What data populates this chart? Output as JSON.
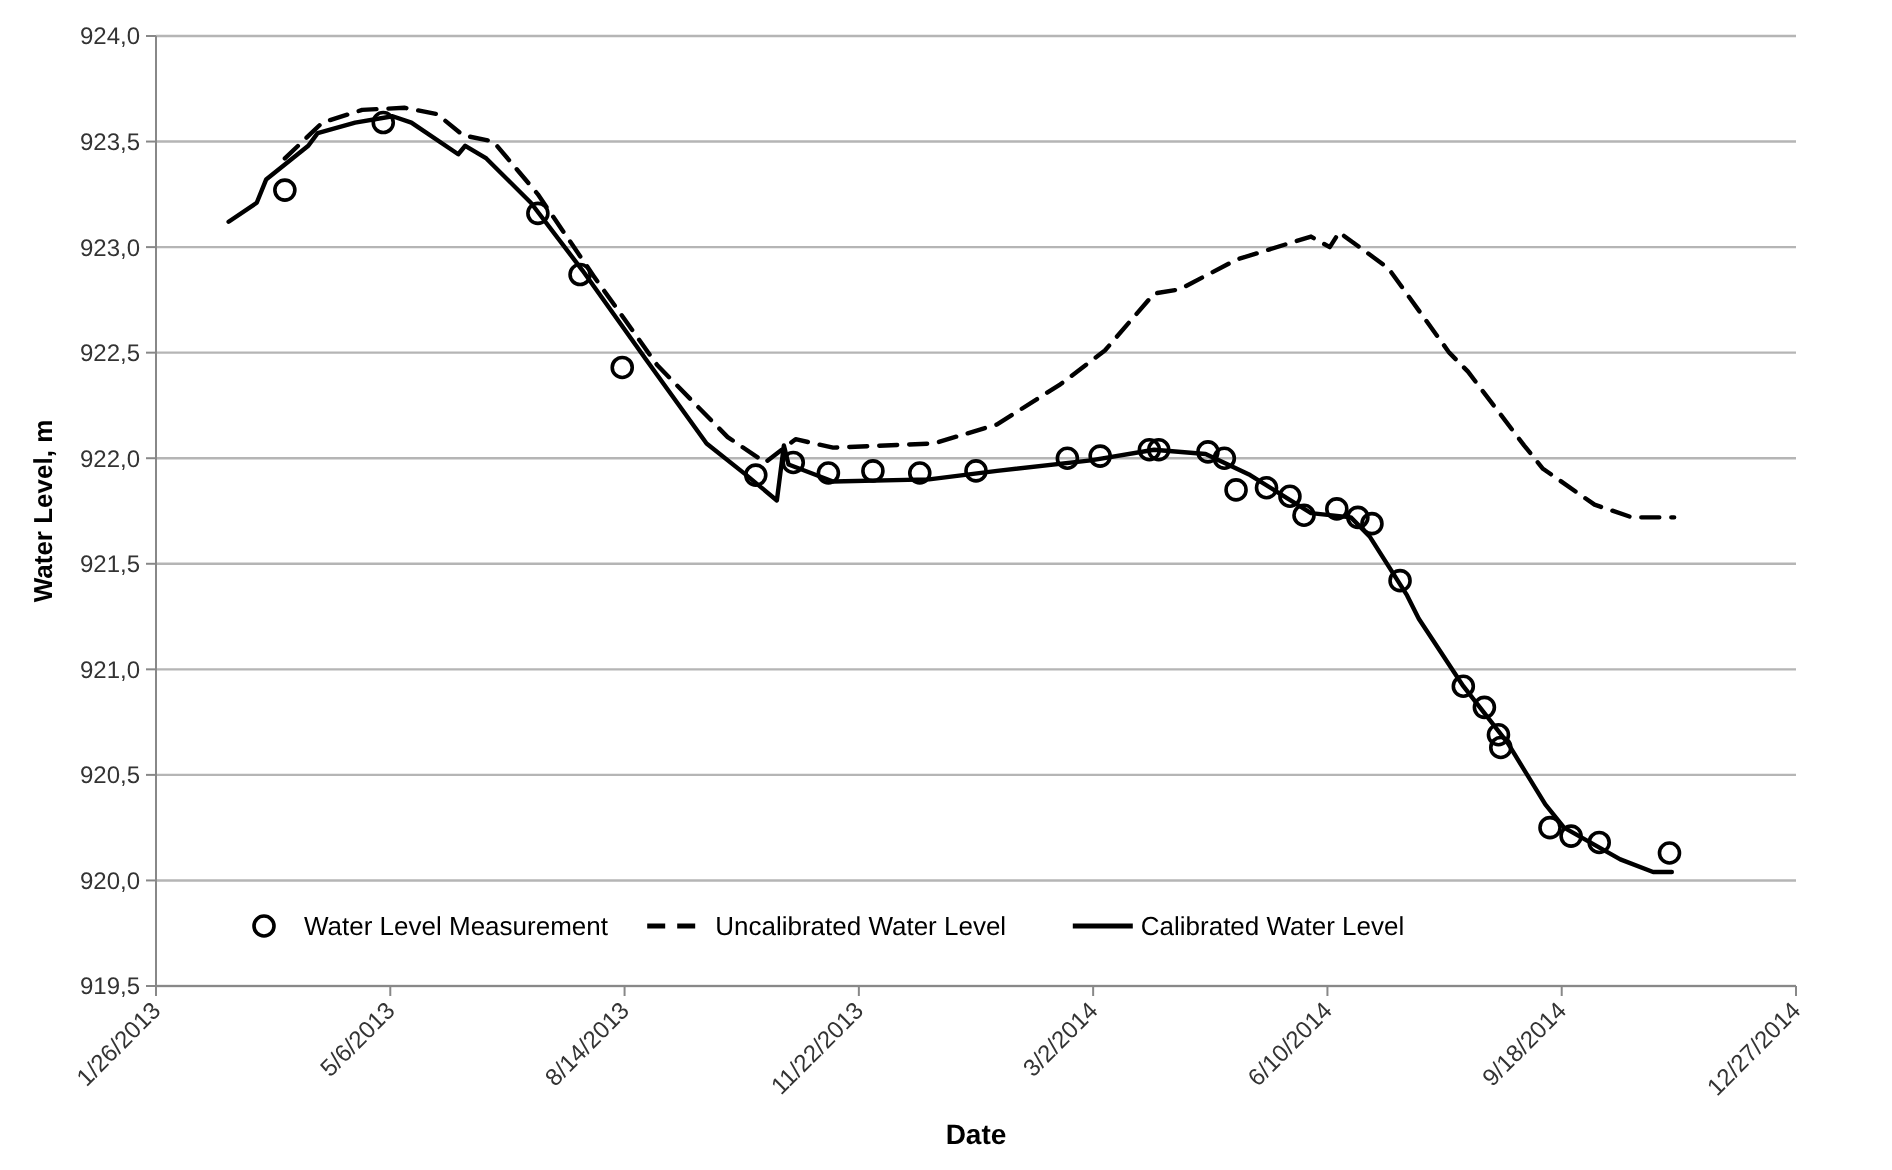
{
  "chart_data": {
    "type": "line",
    "xlabel": "Date",
    "ylabel": "Water Level, m",
    "xlim": [
      "2013-01-26",
      "2014-12-27"
    ],
    "xticks": [
      {
        "value": "2013-01-26",
        "label": "1/26/2013"
      },
      {
        "value": "2013-05-06",
        "label": "5/6/2013"
      },
      {
        "value": "2013-08-14",
        "label": "8/14/2013"
      },
      {
        "value": "2013-11-22",
        "label": "11/22/2013"
      },
      {
        "value": "2014-03-02",
        "label": "3/2/2014"
      },
      {
        "value": "2014-06-10",
        "label": "6/10/2014"
      },
      {
        "value": "2014-09-18",
        "label": "9/18/2014"
      },
      {
        "value": "2014-12-27",
        "label": "12/27/2014"
      }
    ],
    "ylim": [
      919.5,
      924
    ],
    "yticks": [
      {
        "value": 919.5,
        "label": "919,5"
      },
      {
        "value": 920,
        "label": "920,0"
      },
      {
        "value": 920.5,
        "label": "920,5"
      },
      {
        "value": 921,
        "label": "921,0"
      },
      {
        "value": 921.5,
        "label": "921,5"
      },
      {
        "value": 922,
        "label": "922,0"
      },
      {
        "value": 922.5,
        "label": "922,5"
      },
      {
        "value": 923,
        "label": "923,0"
      },
      {
        "value": 923.5,
        "label": "923,5"
      },
      {
        "value": 924,
        "label": "924,0"
      }
    ],
    "grid": "y",
    "legend": "bottom left",
    "series": [
      {
        "name": "Water Level Measurement",
        "type": "scatter",
        "marker": "circle",
        "color": "#000000",
        "x": [
          "2013-03-22",
          "2013-05-03",
          "2013-07-08",
          "2013-07-26",
          "2013-08-13",
          "2013-10-09",
          "2013-10-25",
          "2013-11-09",
          "2013-11-28",
          "2013-12-18",
          "2014-01-11",
          "2014-02-19",
          "2014-03-05",
          "2014-03-26",
          "2014-03-30",
          "2014-04-20",
          "2014-04-27",
          "2014-05-02",
          "2014-05-15",
          "2014-05-25",
          "2014-05-31",
          "2014-06-14",
          "2014-06-23",
          "2014-06-29",
          "2014-07-11",
          "2014-08-07",
          "2014-08-16",
          "2014-08-22",
          "2014-08-23",
          "2014-09-13",
          "2014-09-22",
          "2014-10-04",
          "2014-11-03"
        ],
        "values": [
          923.27,
          923.59,
          923.16,
          922.87,
          922.43,
          921.92,
          921.98,
          921.93,
          921.94,
          921.93,
          921.94,
          922.0,
          922.01,
          922.04,
          922.04,
          922.03,
          922.0,
          921.85,
          921.86,
          921.82,
          921.73,
          921.76,
          921.72,
          921.69,
          921.42,
          920.92,
          920.82,
          920.69,
          920.63,
          920.25,
          920.21,
          920.18,
          920.13
        ]
      },
      {
        "name": "Uncalibrated Water Level",
        "type": "line",
        "line_style": "dashed",
        "marker": "none",
        "color": "#000000",
        "x": [
          "2013-03-22",
          "2013-04-07",
          "2013-04-24",
          "2013-05-12",
          "2013-05-26",
          "2013-06-06",
          "2013-06-19",
          "2013-07-08",
          "2013-08-01",
          "2013-08-28",
          "2013-09-27",
          "2013-10-13",
          "2013-10-26",
          "2013-11-11",
          "2013-12-24",
          "2014-01-20",
          "2014-02-16",
          "2014-03-07",
          "2014-03-28",
          "2014-04-08",
          "2014-05-02",
          "2014-06-03",
          "2014-06-11",
          "2014-06-15",
          "2014-07-06",
          "2014-08-01",
          "2014-08-09",
          "2014-09-02",
          "2014-09-10",
          "2014-10-02",
          "2014-10-18",
          "2014-11-05"
        ],
        "values": [
          923.42,
          923.59,
          923.65,
          923.66,
          923.63,
          923.53,
          923.5,
          923.25,
          922.86,
          922.44,
          922.1,
          921.98,
          922.09,
          922.05,
          922.07,
          922.16,
          922.35,
          922.51,
          922.78,
          922.8,
          922.94,
          923.05,
          923.0,
          923.07,
          922.9,
          922.5,
          922.41,
          922.06,
          921.95,
          921.78,
          921.72,
          921.72
        ]
      },
      {
        "name": "Calibrated Water Level",
        "type": "line",
        "line_style": "solid",
        "marker": "none",
        "color": "#000000",
        "x": [
          "2013-02-26",
          "2013-03-10",
          "2013-03-14",
          "2013-04-01",
          "2013-04-05",
          "2013-04-21",
          "2013-05-07",
          "2013-05-15",
          "2013-06-04",
          "2013-06-07",
          "2013-06-16",
          "2013-07-05",
          "2013-07-27",
          "2013-08-23",
          "2013-09-18",
          "2013-10-05",
          "2013-10-18",
          "2013-10-21",
          "2013-10-23",
          "2013-11-11",
          "2013-12-22",
          "2014-01-20",
          "2014-03-01",
          "2014-03-28",
          "2014-04-19",
          "2014-05-08",
          "2014-05-21",
          "2014-06-03",
          "2014-06-20",
          "2014-06-28",
          "2014-07-14",
          "2014-07-19",
          "2014-08-07",
          "2014-08-26",
          "2014-09-11",
          "2014-09-19",
          "2014-10-13",
          "2014-10-27",
          "2014-11-04"
        ],
        "values": [
          923.12,
          923.21,
          923.32,
          923.48,
          923.54,
          923.59,
          923.62,
          923.59,
          923.44,
          923.48,
          923.42,
          923.21,
          922.89,
          922.47,
          922.07,
          921.92,
          921.8,
          922.06,
          921.97,
          921.89,
          921.9,
          921.94,
          921.99,
          922.04,
          922.02,
          921.92,
          921.83,
          921.74,
          921.72,
          921.63,
          921.35,
          921.24,
          920.92,
          920.65,
          920.36,
          920.25,
          920.1,
          920.04,
          920.04
        ]
      }
    ]
  }
}
